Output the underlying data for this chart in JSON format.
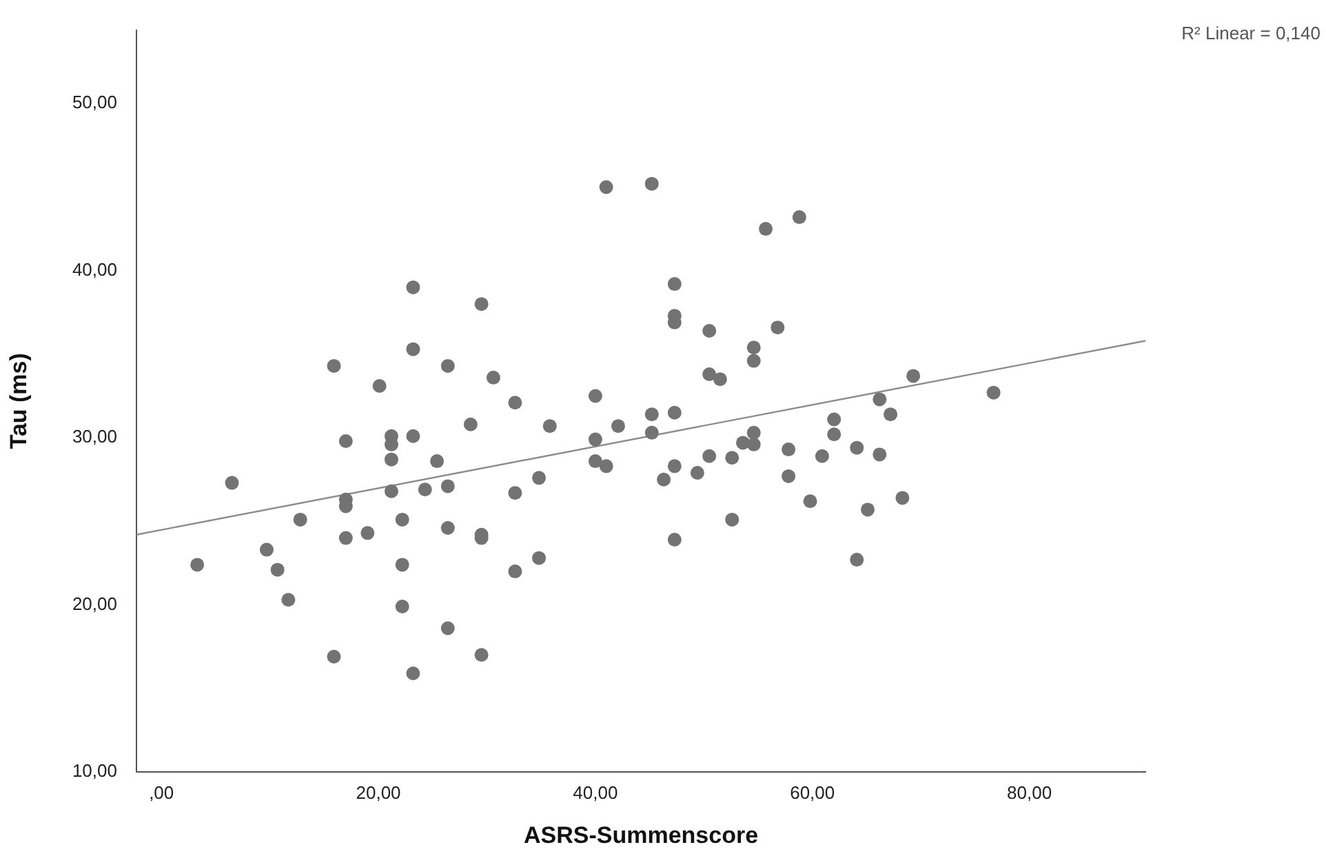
{
  "chart_data": {
    "type": "scatter",
    "xlabel": "ASRS-Summenscore",
    "ylabel": "Tau (ms)",
    "annotations": [
      "R² Linear = 0,140"
    ],
    "xlim": [
      -2.3,
      90.7
    ],
    "ylim": [
      10,
      54.4
    ],
    "xticks": [
      {
        "value": 0,
        "label": ",00"
      },
      {
        "value": 20,
        "label": "20,00"
      },
      {
        "value": 40,
        "label": "40,00"
      },
      {
        "value": 60,
        "label": "60,00"
      },
      {
        "value": 80,
        "label": "80,00"
      }
    ],
    "yticks": [
      {
        "value": 10,
        "label": "10,00"
      },
      {
        "value": 20,
        "label": "20,00"
      },
      {
        "value": 30,
        "label": "30,00"
      },
      {
        "value": 40,
        "label": "40,00"
      },
      {
        "value": 50,
        "label": "50,00"
      }
    ],
    "grid": false,
    "legend": false,
    "marker": "circle",
    "series": [
      {
        "color": "#737373",
        "x": [
          23.2,
          29.5,
          23.2,
          15.9,
          26.4,
          30.6,
          20.1,
          32.6,
          28.5,
          17.0,
          21.2,
          21.2,
          23.2,
          21.2,
          25.4,
          6.5,
          17.0,
          17.0,
          21.2,
          24.3,
          26.4,
          32.6,
          12.8,
          22.2,
          17.0,
          19.0,
          26.4,
          29.5,
          29.5,
          32.6,
          9.7,
          3.3,
          10.7,
          22.2,
          11.7,
          22.2,
          26.4,
          15.9,
          29.5,
          23.2,
          41.0,
          45.2,
          55.7,
          58.8,
          47.3,
          47.3,
          47.3,
          50.5,
          56.8,
          54.6,
          54.6,
          50.5,
          51.5,
          40.0,
          35.8,
          42.1,
          45.2,
          47.3,
          40.0,
          45.2,
          40.0,
          41.0,
          47.3,
          46.3,
          50.5,
          49.4,
          52.6,
          53.6,
          54.6,
          54.6,
          57.8,
          57.8,
          60.9,
          62.0,
          62.0,
          34.8,
          52.6,
          59.8,
          47.3,
          34.8,
          69.3,
          76.7,
          66.2,
          67.2,
          64.1,
          66.2,
          65.1,
          68.3,
          64.1
        ],
        "values": [
          39.0,
          38.0,
          35.3,
          34.3,
          34.3,
          33.6,
          33.1,
          32.1,
          30.8,
          29.8,
          30.1,
          29.6,
          30.1,
          28.7,
          28.6,
          27.3,
          26.3,
          25.9,
          26.8,
          26.9,
          27.1,
          26.7,
          25.1,
          25.1,
          24.0,
          24.3,
          24.6,
          24.2,
          24.0,
          22.0,
          23.3,
          22.4,
          22.1,
          22.4,
          20.3,
          19.9,
          18.6,
          16.9,
          17.0,
          15.9,
          45.0,
          45.2,
          42.5,
          43.2,
          39.2,
          37.3,
          36.9,
          36.4,
          36.6,
          35.4,
          34.6,
          33.8,
          33.5,
          32.5,
          30.7,
          30.7,
          31.4,
          31.5,
          29.9,
          30.3,
          28.6,
          28.3,
          28.3,
          27.5,
          28.9,
          27.9,
          28.8,
          29.7,
          30.3,
          29.6,
          29.3,
          27.7,
          28.9,
          31.1,
          30.2,
          27.6,
          25.1,
          26.2,
          23.9,
          22.8,
          33.7,
          32.7,
          32.3,
          31.4,
          29.4,
          29.0,
          25.7,
          26.4,
          22.7
        ]
      },
      {
        "type": "line",
        "color": "#8c8c8c",
        "marker": "none",
        "line_style": "solid",
        "x": [
          -2.3,
          90.7
        ],
        "values": [
          24.2,
          35.8
        ]
      }
    ]
  }
}
